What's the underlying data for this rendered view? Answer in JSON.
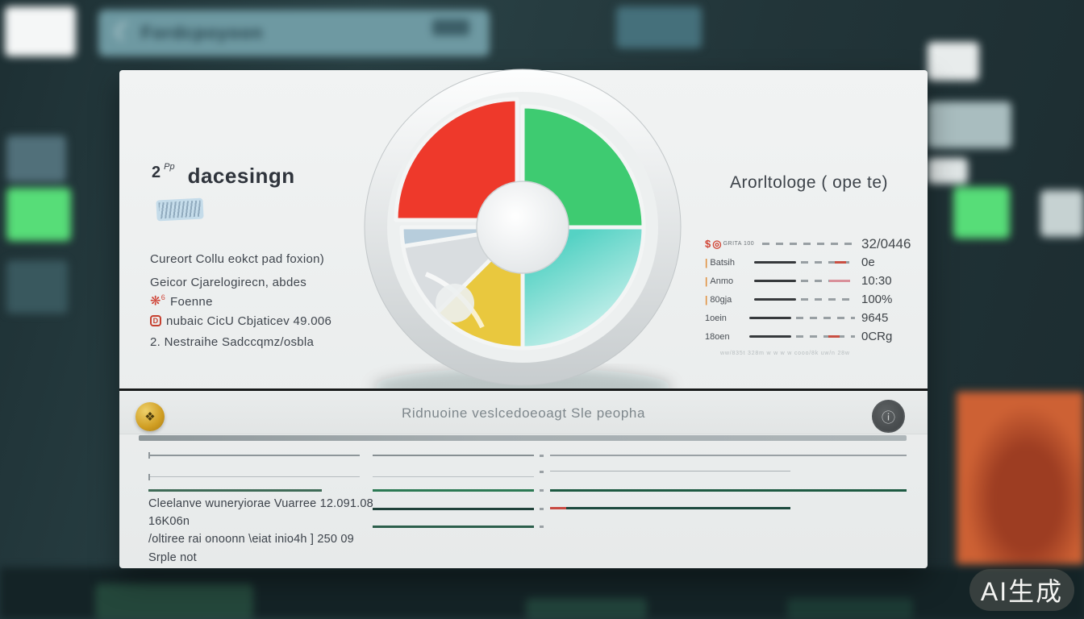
{
  "background": {
    "search": {
      "icon_glyph": "☾",
      "text": "Fordcpoyoon"
    },
    "watermark": "AI生成"
  },
  "card": {
    "left": {
      "heading_num": "2",
      "heading_sup": "Pp",
      "heading_title": "dacesingn",
      "lines": [
        {
          "text": "Cureort Collu eokct pad foxion)"
        },
        {
          "text": "Geicor Cjarelogirecn, abdes"
        },
        {
          "icon_glyph": "❋",
          "icon_sup": "6",
          "text": "Foenne"
        },
        {
          "icon_letter": "D",
          "text": "nubaic CicU Cbjaticev 49.006"
        },
        {
          "text": "2. Nestraihe Sadccqmz/osbla"
        }
      ]
    },
    "right": {
      "heading": "Arorltologe ( ope te)",
      "rows": [
        {
          "dollar": "$",
          "circle": "◎",
          "label": "GRITA 100",
          "value": "32/0446"
        },
        {
          "label": "Batsih",
          "value": "0e"
        },
        {
          "label": "Anmo",
          "value": "10:30"
        },
        {
          "label": "80gja",
          "value": "100%"
        },
        {
          "label": "1oein",
          "value": "9645"
        },
        {
          "label": "18oen",
          "value": "0CRg"
        }
      ],
      "footnote": "ww/835t 328m      w    w    w    w    cooo/8k     uw/n 28w"
    },
    "bottom": {
      "badge_glyph": "❖",
      "title": "Ridnuoine veslcedoeoagt Sle peopha",
      "info_glyph": "ⓘ",
      "notes": [
        "Cleelanve wuneryiorae Vuarree 12.091.08   16K06n",
        "/oltiree rai onoonn \\eiat inio4h ] 250 09",
        "Srple not"
      ]
    }
  },
  "chart_data": {
    "type": "pie",
    "start_angle_deg": 0,
    "slices": [
      {
        "label": "green",
        "value": 25,
        "color": "#3ecb71"
      },
      {
        "label": "teal",
        "value": 25,
        "color": "#8adfd6",
        "gradient": "tealGrad"
      },
      {
        "label": "yellow",
        "value": 12.5,
        "color": "#e9c83e"
      },
      {
        "label": "silver",
        "value": 10,
        "color": "#d9dde0"
      },
      {
        "label": "blue-sliver",
        "value": 2.5,
        "color": "#b7cddc"
      },
      {
        "label": "red",
        "value": 25,
        "color": "#ee392b",
        "explode_xy": [
          -7,
          -9
        ]
      }
    ]
  }
}
